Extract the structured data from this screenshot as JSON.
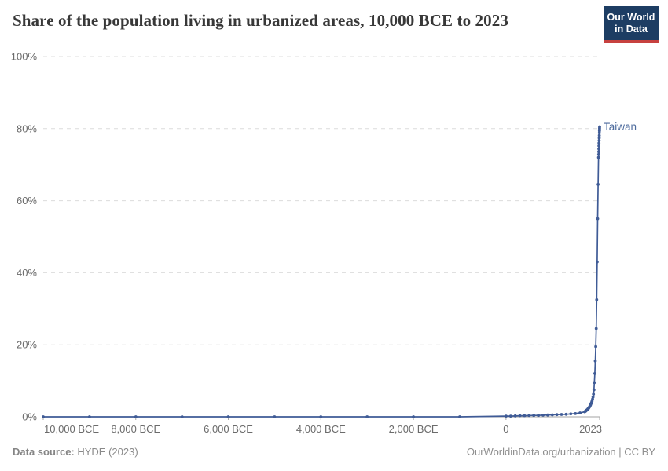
{
  "header": {
    "title": "Share of the population living in urbanized areas, 10,000 BCE to 2023",
    "logo": {
      "line1": "Our World",
      "line2": "in Data"
    }
  },
  "footer": {
    "source_label": "Data source:",
    "source_value": " HYDE (2023)",
    "right_text": "OurWorldinData.org/urbanization | CC BY"
  },
  "colors": {
    "series": "#3f5b96",
    "series_label": "#4c6a9c",
    "grid": "#dcdcdc",
    "axis": "#a3a3a3",
    "tick_label": "#6b6b6b",
    "title": "#383838",
    "logo_bg": "#1d3d63",
    "logo_accent": "#c7413f"
  },
  "chart_data": {
    "type": "line",
    "title": "Share of the population living in urbanized areas, 10,000 BCE to 2023",
    "xlabel": "",
    "ylabel": "",
    "xlim": [
      -10000,
      2023
    ],
    "ylim": [
      0,
      100
    ],
    "grid": "horizontal-dashed",
    "legend_position": "end-of-line label",
    "x_ticks": [
      {
        "value": -10000,
        "label": "10,000 BCE"
      },
      {
        "value": -8000,
        "label": "8,000 BCE"
      },
      {
        "value": -6000,
        "label": "6,000 BCE"
      },
      {
        "value": -4000,
        "label": "4,000 BCE"
      },
      {
        "value": -2000,
        "label": "2,000 BCE"
      },
      {
        "value": 0,
        "label": "0"
      },
      {
        "value": 2023,
        "label": "2023"
      }
    ],
    "y_ticks": [
      {
        "value": 0,
        "label": "0%"
      },
      {
        "value": 20,
        "label": "20%"
      },
      {
        "value": 40,
        "label": "40%"
      },
      {
        "value": 60,
        "label": "60%"
      },
      {
        "value": 80,
        "label": "80%"
      },
      {
        "value": 100,
        "label": "100%"
      }
    ],
    "series": [
      {
        "name": "Taiwan",
        "color": "#3f5b96",
        "label_color": "#4c6a9c",
        "points": [
          [
            -10000,
            0
          ],
          [
            -9000,
            0
          ],
          [
            -8000,
            0
          ],
          [
            -7000,
            0
          ],
          [
            -6000,
            0
          ],
          [
            -5000,
            0
          ],
          [
            -4000,
            0
          ],
          [
            -3000,
            0
          ],
          [
            -2000,
            0
          ],
          [
            -1000,
            0
          ],
          [
            0,
            0.2
          ],
          [
            100,
            0.2
          ],
          [
            200,
            0.25
          ],
          [
            300,
            0.3
          ],
          [
            400,
            0.3
          ],
          [
            500,
            0.35
          ],
          [
            600,
            0.4
          ],
          [
            700,
            0.4
          ],
          [
            800,
            0.45
          ],
          [
            900,
            0.5
          ],
          [
            1000,
            0.55
          ],
          [
            1100,
            0.6
          ],
          [
            1200,
            0.65
          ],
          [
            1300,
            0.7
          ],
          [
            1400,
            0.8
          ],
          [
            1500,
            0.9
          ],
          [
            1600,
            1.1
          ],
          [
            1700,
            1.4
          ],
          [
            1710,
            1.5
          ],
          [
            1720,
            1.6
          ],
          [
            1730,
            1.7
          ],
          [
            1740,
            1.8
          ],
          [
            1750,
            1.9
          ],
          [
            1760,
            2.0
          ],
          [
            1770,
            2.2
          ],
          [
            1780,
            2.3
          ],
          [
            1790,
            2.5
          ],
          [
            1800,
            2.7
          ],
          [
            1810,
            2.9
          ],
          [
            1820,
            3.1
          ],
          [
            1830,
            3.4
          ],
          [
            1840,
            3.7
          ],
          [
            1850,
            4.0
          ],
          [
            1860,
            4.4
          ],
          [
            1870,
            4.9
          ],
          [
            1880,
            5.5
          ],
          [
            1890,
            6.3
          ],
          [
            1900,
            7.5
          ],
          [
            1910,
            9.5
          ],
          [
            1920,
            12
          ],
          [
            1930,
            15.5
          ],
          [
            1940,
            19.5
          ],
          [
            1950,
            24.5
          ],
          [
            1960,
            32.5
          ],
          [
            1970,
            43
          ],
          [
            1980,
            55
          ],
          [
            1990,
            64.5
          ],
          [
            2000,
            72
          ],
          [
            2002,
            72.8
          ],
          [
            2004,
            73.6
          ],
          [
            2006,
            74.4
          ],
          [
            2008,
            75.2
          ],
          [
            2010,
            76
          ],
          [
            2012,
            76.7
          ],
          [
            2014,
            77.4
          ],
          [
            2016,
            78.1
          ],
          [
            2018,
            78.8
          ],
          [
            2020,
            79.4
          ],
          [
            2021,
            79.7
          ],
          [
            2022,
            80.1
          ],
          [
            2023,
            80.5
          ]
        ]
      }
    ]
  }
}
